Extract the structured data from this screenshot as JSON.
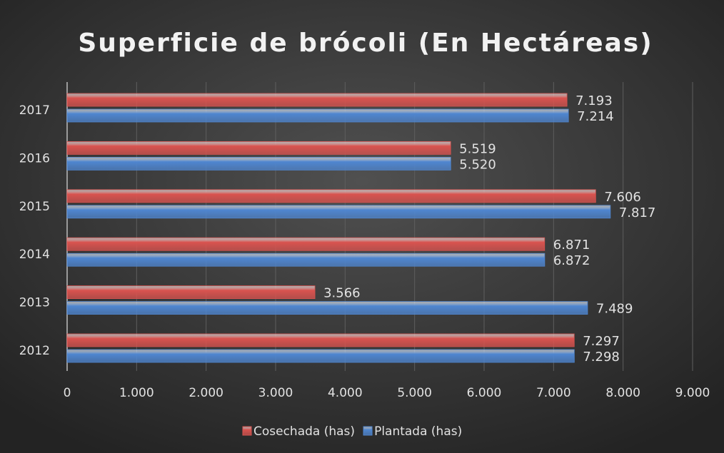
{
  "chart_data": {
    "type": "hbar",
    "title": "Superficie de brócoli (En Hectáreas)",
    "categories": [
      "2012",
      "2013",
      "2014",
      "2015",
      "2016",
      "2017"
    ],
    "series": [
      {
        "name": "Cosechada (has)",
        "color": "#d9534f",
        "values": [
          7297,
          3566,
          6871,
          7606,
          5519,
          7193
        ],
        "value_labels": [
          "7.297",
          "3.566",
          "6.871",
          "7.606",
          "5.519",
          "7.193"
        ]
      },
      {
        "name": "Plantada (has)",
        "color": "#4f86d0",
        "values": [
          7298,
          7489,
          6872,
          7817,
          5520,
          7214
        ],
        "value_labels": [
          "7.298",
          "7.489",
          "6.872",
          "7.817",
          "5.520",
          "7.214"
        ]
      }
    ],
    "xlim": [
      0,
      9000
    ],
    "xticks": [
      0,
      {
        "value": 1000,
        "label": "1.000"
      },
      {
        "value": 2000,
        "label": "2.000"
      },
      {
        "value": 3000,
        "label": "3.000"
      },
      {
        "value": 4000,
        "label": "4.000"
      },
      {
        "value": 5000,
        "label": "5.000"
      },
      {
        "value": 6000,
        "label": "6.000"
      },
      {
        "value": 7000,
        "label": "7.000"
      },
      {
        "value": 8000,
        "label": "8.000"
      },
      {
        "value": 9000,
        "label": "9.000"
      }
    ],
    "grid": true,
    "legend": "bottom"
  }
}
